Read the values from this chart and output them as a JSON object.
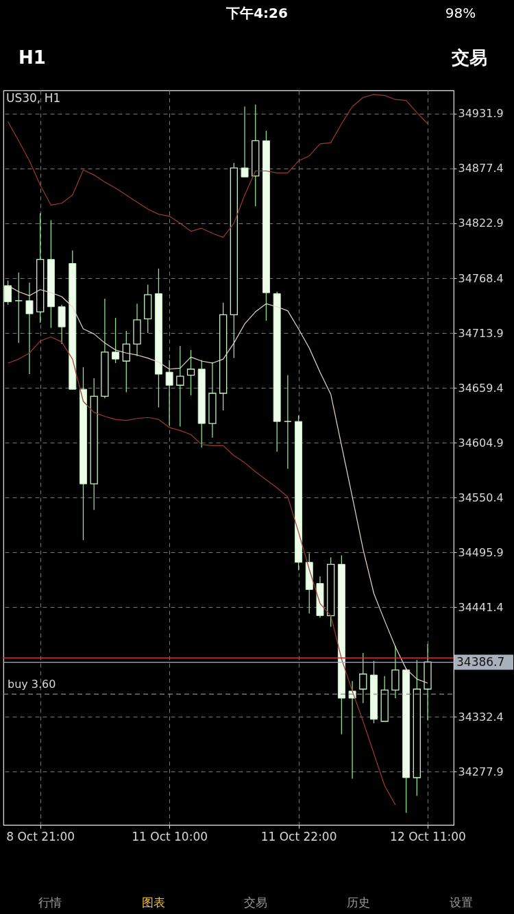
{
  "chart_data": {
    "type": "candlestick",
    "title": "US30, H1",
    "categories": [
      null,
      null,
      null,
      "8 Oct 21:00",
      null,
      null,
      null,
      null,
      null,
      null,
      null,
      null,
      null,
      null,
      null,
      "11 Oct 10:00",
      null,
      null,
      null,
      null,
      null,
      null,
      null,
      null,
      null,
      null,
      null,
      "11 Oct 22:00",
      null,
      null,
      null,
      null,
      null,
      null,
      null,
      null,
      null,
      null,
      null,
      "12 Oct 11:00"
    ],
    "ohlc": [
      [
        34761,
        34766,
        34742,
        34745
      ],
      [
        34746,
        34774,
        34704,
        34746
      ],
      [
        34746,
        34764,
        34673,
        34733
      ],
      [
        34735,
        34833,
        34724,
        34787
      ],
      [
        34787,
        34826,
        34719,
        34740
      ],
      [
        34740,
        34742,
        34703,
        34720
      ],
      [
        34783,
        34796,
        34658,
        34658
      ],
      [
        34658,
        34680,
        34508,
        34564
      ],
      [
        34564,
        34669,
        34538,
        34651
      ],
      [
        34651,
        34748,
        34649,
        34695
      ],
      [
        34695,
        34729,
        34684,
        34688
      ],
      [
        34686,
        34716,
        34655,
        34703
      ],
      [
        34703,
        34743,
        34691,
        34727
      ],
      [
        34728,
        34762,
        34714,
        34752
      ],
      [
        34753,
        34778,
        34640,
        34673
      ],
      [
        34675,
        34687,
        34622,
        34662
      ],
      [
        34662,
        34701,
        34621,
        34671
      ],
      [
        34672,
        34697,
        34652,
        34678
      ],
      [
        34678,
        34687,
        34600,
        34624
      ],
      [
        34624,
        34685,
        34610,
        34654
      ],
      [
        34654,
        34744,
        34637,
        34732
      ],
      [
        34732,
        34883,
        34689,
        34878
      ],
      [
        34878,
        34939,
        34869,
        34869
      ],
      [
        34870,
        34941,
        34840,
        34905
      ],
      [
        34905,
        34915,
        34726,
        34754
      ],
      [
        34753,
        34755,
        34596,
        34626
      ],
      [
        34626,
        34672,
        34579,
        34626
      ],
      [
        34626,
        34632,
        34478,
        34486
      ],
      [
        34486,
        34495,
        34435,
        34459
      ],
      [
        34465,
        34472,
        34431,
        34433
      ],
      [
        34433,
        34491,
        34422,
        34484
      ],
      [
        34484,
        34493,
        34315,
        34351
      ],
      [
        34358,
        34368,
        34271,
        34351
      ],
      [
        34360,
        34396,
        34346,
        34375
      ],
      [
        34374,
        34388,
        34326,
        34330
      ],
      [
        34328,
        34373,
        34328,
        34359
      ],
      [
        34359,
        34403,
        34351,
        34379
      ],
      [
        34379,
        34381,
        34237,
        34272
      ],
      [
        34272,
        34389,
        34254,
        34360
      ],
      [
        34360,
        34405,
        34329,
        34387
      ]
    ],
    "series": [
      {
        "type": "line",
        "color": "#9c3a36",
        "values": [
          34924,
          34905,
          34885,
          34861,
          34841,
          34843,
          34851,
          34876,
          34871,
          34864,
          34858,
          34851,
          34844,
          34837,
          34832,
          34830,
          34823,
          34815,
          34818,
          34813,
          34809,
          34823,
          34851,
          34875,
          34875,
          34873,
          34873,
          34885,
          34890,
          34902,
          34903,
          34922,
          34939,
          34948,
          34951,
          34950,
          34946,
          34945,
          34933,
          34922
        ]
      },
      {
        "type": "line",
        "color": "#e6d6cc",
        "values": [
          34761,
          34755,
          34751,
          34757,
          34754,
          34750,
          34740,
          34718,
          34713,
          34704,
          34697,
          34694,
          34692,
          34689,
          34685,
          34678,
          34679,
          34690,
          34686,
          34684,
          34688,
          34704,
          34723,
          34735,
          34743,
          34740,
          34736,
          34718,
          34699,
          34675,
          34653,
          34602,
          34551,
          34499,
          34455,
          34428,
          34402,
          34380,
          34370,
          34366
        ]
      },
      {
        "type": "line",
        "color": "#9c3a36",
        "values": [
          34684,
          34688,
          34694,
          34706,
          34710,
          34705,
          34688,
          34646,
          34635,
          34631,
          34628,
          34627,
          34629,
          34630,
          34628,
          34620,
          34617,
          34613,
          34603,
          34602,
          34602,
          34592,
          34585,
          34576,
          34568,
          34560,
          34551,
          34516,
          34479,
          34445,
          34433,
          34390,
          34358,
          34328,
          34296,
          34264,
          34245,
          null,
          null,
          null
        ]
      }
    ],
    "ylim": [
      34225,
      34955
    ],
    "yticks": [
      34931.9,
      34877.4,
      34822.9,
      34768.4,
      34713.9,
      34659.4,
      34604.9,
      34550.4,
      34495.9,
      34441.4,
      {
        "value": 34386.9,
        "label": null
      },
      34332.4,
      34277.9
    ],
    "ref_lines": [
      {
        "axis": "y",
        "value": 34391,
        "color": "#d0302c"
      },
      {
        "axis": "y",
        "value": 34386.7,
        "label": "34386.7",
        "color": "#a8b0bc"
      },
      {
        "axis": "y",
        "value": 34355,
        "label": "buy 3.60",
        "color": "#8a8a8a",
        "line_style": "dashed"
      }
    ],
    "annotations": [
      "下午4:26",
      "98%",
      "H1",
      "交易",
      "行情",
      "图表",
      "交易",
      "历史",
      "设置"
    ],
    "grid": true
  }
}
